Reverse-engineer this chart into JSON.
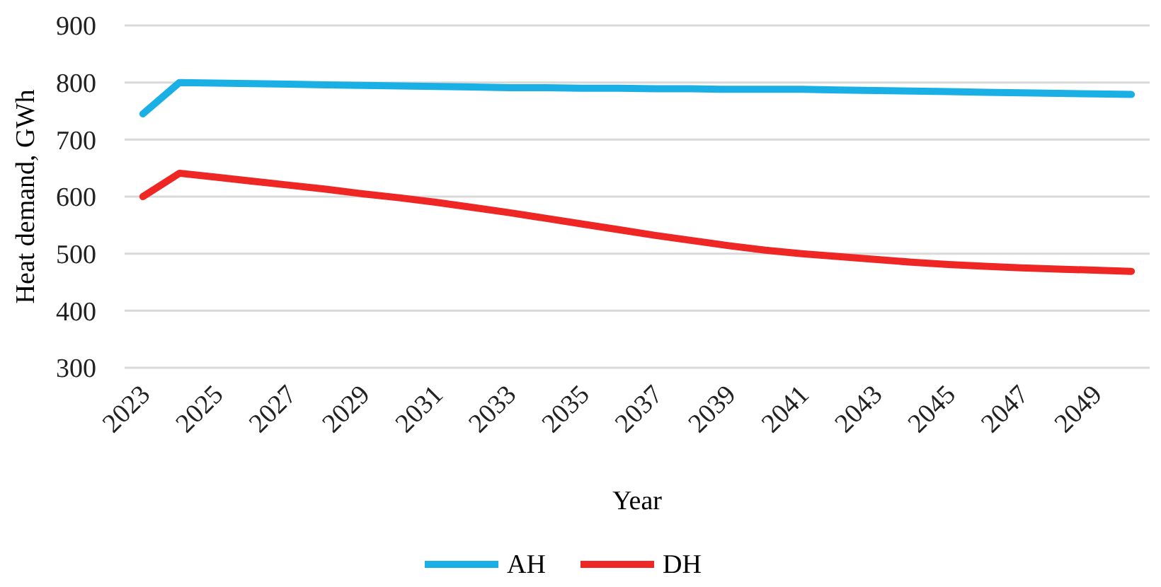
{
  "chart_data": {
    "type": "line",
    "xlabel": "Year",
    "ylabel": "Heat demand, GWh",
    "categories": [
      "2023",
      null,
      "2025",
      null,
      "2027",
      null,
      "2029",
      null,
      "2031",
      null,
      "2033",
      null,
      "2035",
      null,
      "2037",
      null,
      "2039",
      null,
      "2041",
      null,
      "2043",
      null,
      "2045",
      null,
      "2047",
      null,
      "2049",
      null
    ],
    "series": [
      {
        "name": "AH",
        "color": "#1ab0e6",
        "values": [
          745,
          800,
          799,
          798,
          797,
          796,
          795,
          794,
          793,
          792,
          791,
          791,
          790,
          790,
          789,
          789,
          788,
          788,
          788,
          787,
          786,
          785,
          784,
          783,
          782,
          781,
          780,
          779
        ]
      },
      {
        "name": "DH",
        "color": "#ee2624",
        "values": [
          600,
          641,
          634,
          627,
          620,
          613,
          605,
          598,
          590,
          581,
          572,
          562,
          552,
          542,
          532,
          523,
          514,
          506,
          500,
          495,
          490,
          485,
          481,
          478,
          475,
          473,
          471,
          469
        ]
      }
    ],
    "ylim": [
      300,
      900
    ],
    "yticks": [
      300,
      400,
      500,
      600,
      700,
      800,
      900
    ],
    "grid": "y",
    "legend": "bottom",
    "marker": "none",
    "line_style": "solid"
  }
}
